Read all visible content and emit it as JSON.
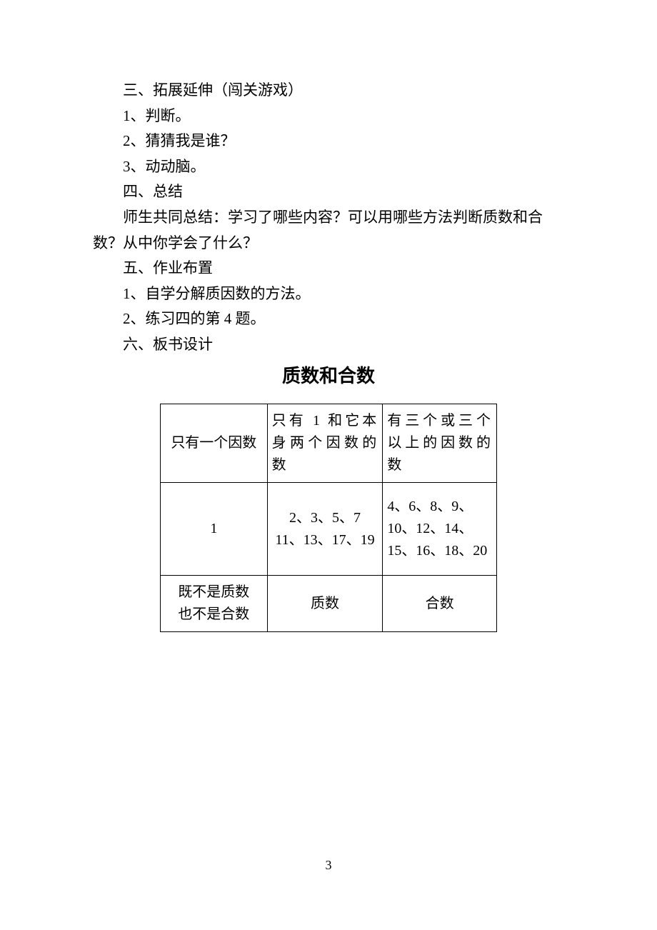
{
  "lines": {
    "l1": "三、拓展延伸（闯关游戏）",
    "l2": "1、判断。",
    "l3": "2、猜猜我是谁？",
    "l4": "3、动动脑。",
    "l5": "四、总结",
    "l6": "师生共同总结：学习了哪些内容？可以用哪些方法判断质数和合",
    "l7": "数？从中你学会了什么？",
    "l8": "五、作业布置",
    "l9": "1、自学分解质因数的方法。",
    "l10": "2、练习四的第 4 题。",
    "l11": "六、板书设计"
  },
  "title": "质数和合数",
  "table": {
    "r1c1": "只有一个因数",
    "r1c2": "只有 1 和它本身两个因数的数",
    "r1c3": "有三个或三个以上的因数的数",
    "r2c1": "1",
    "r2c2a": "2、3、5、7",
    "r2c2b": "11、13、17、19",
    "r2c3a": "4、6、8、9、",
    "r2c3b": "10、12、14、",
    "r2c3c": "15、16、18、20",
    "r3c1a": "既不是质数",
    "r3c1b": "也不是合数",
    "r3c2": "质数",
    "r3c3": "合数"
  },
  "pageNumber": "3"
}
